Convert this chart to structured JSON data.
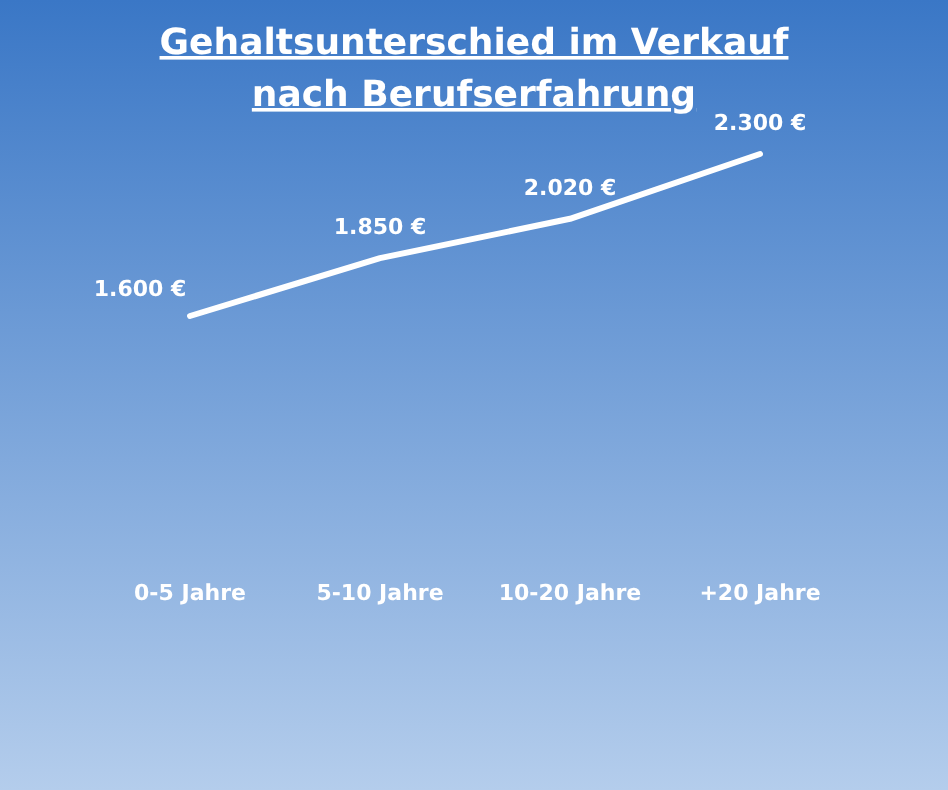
{
  "chart_data": {
    "type": "line",
    "title": "Gehaltsunterschied im Verkauf\nnach Berufserfahrung",
    "categories": [
      "0-5 Jahre",
      "5-10 Jahre",
      "10-20 Jahre",
      "+20 Jahre"
    ],
    "values": [
      1600,
      1850,
      2020,
      2300
    ],
    "value_labels": [
      "1.600 €",
      "1.850 €",
      "2.020 €",
      "2.300 €"
    ],
    "color": "#ffffff",
    "marker": "none",
    "line_style": "solid"
  }
}
